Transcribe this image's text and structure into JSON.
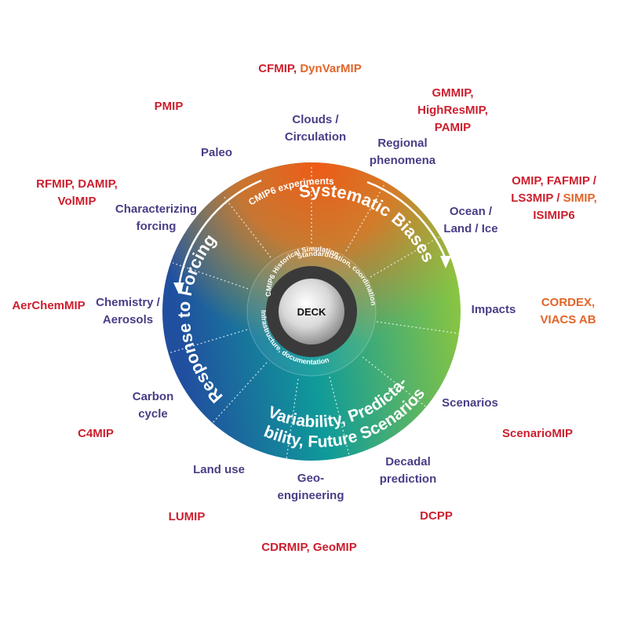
{
  "wheel": {
    "center_label": "DECK",
    "inner_ring_texts": {
      "historical": "CMIP6 Historical Simulation",
      "standardization": "Standardization, coordination",
      "infrastructure": "Infrastructure, documentation"
    },
    "arc_texts": {
      "experiments": "CMIP6 experiments",
      "systematic_biases": "Systematic Biases",
      "response_to_forcing": "Response to Forcing",
      "variability_line1": "Variability, Predicta-",
      "variability_line2": "bility, Future Scenarios"
    },
    "colors": {
      "orange": "#e8601c",
      "green": "#8dc63f",
      "blue": "#214f9f",
      "teal": "#0f9b9a",
      "topic_text": "#4a3d86",
      "mip_red": "#cc1f2e",
      "mip_orange": "#e2652a"
    }
  },
  "topics": {
    "clouds": [
      "Clouds /",
      "Circulation"
    ],
    "regional": [
      "Regional",
      "phenomena"
    ],
    "ocean": [
      "Ocean /",
      "Land / Ice"
    ],
    "impacts": [
      "Impacts"
    ],
    "scenarios": [
      "Scenarios"
    ],
    "decadal": [
      "Decadal",
      "prediction"
    ],
    "geo": [
      "Geo-",
      "engineering"
    ],
    "landuse": [
      "Land use"
    ],
    "carbon": [
      "Carbon",
      "cycle"
    ],
    "chemistry": [
      "Chemistry /",
      "Aerosols"
    ],
    "forcing": [
      "Characterizing",
      "forcing"
    ],
    "paleo": [
      "Paleo"
    ]
  },
  "mips": {
    "cfmip": "CFMIP,",
    "dynvarmip": "DynVarMIP",
    "gmmip": "GMMIP,",
    "highresmip": "HighResMIP,",
    "pamip": "PAMIP",
    "omip_line1": "OMIP, FAFMIP /",
    "ls3mip": "LS3MIP /",
    "simip": "SIMIP,",
    "isimip6": "ISIMIP6",
    "cordex": "CORDEX,",
    "viacs": "VIACS AB",
    "scenariomip": "ScenarioMIP",
    "dcpp": "DCPP",
    "cdrmip_geomip": "CDRMIP, GeoMIP",
    "lumip": "LUMIP",
    "c4mip": "C4MIP",
    "aerchemmip": "AerChemMIP",
    "rfmip_line1": "RFMIP, DAMIP,",
    "volmip": "VolMIP",
    "pmip": "PMIP"
  }
}
